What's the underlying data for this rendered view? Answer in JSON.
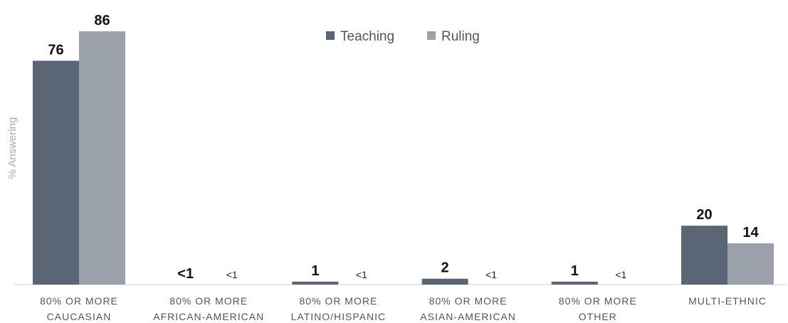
{
  "chart_data": {
    "type": "bar",
    "title": "",
    "xlabel": "",
    "ylabel": "% Answering",
    "ylim": [
      0,
      86
    ],
    "grid": false,
    "legend": "top-center",
    "categories": [
      [
        "80% OR MORE",
        "CAUCASIAN"
      ],
      [
        "80% OR MORE",
        "AFRICAN-AMERICAN"
      ],
      [
        "80% OR MORE",
        "LATINO/HISPANIC"
      ],
      [
        "80% OR MORE",
        "ASIAN-AMERICAN"
      ],
      [
        "80% OR MORE",
        "OTHER"
      ],
      [
        "MULTI-ETHNIC"
      ]
    ],
    "series": [
      {
        "name": "Teaching",
        "color": "#5a6676",
        "values": [
          76,
          0,
          1,
          2,
          1,
          20
        ],
        "labels": [
          "76",
          "<1",
          "1",
          "2",
          "1",
          "20"
        ]
      },
      {
        "name": "Ruling",
        "color": "#9aa1ab",
        "values": [
          86,
          0,
          0,
          0,
          0,
          14
        ],
        "labels": [
          "86",
          "<1",
          "<1",
          "<1",
          "<1",
          "14"
        ]
      }
    ]
  }
}
